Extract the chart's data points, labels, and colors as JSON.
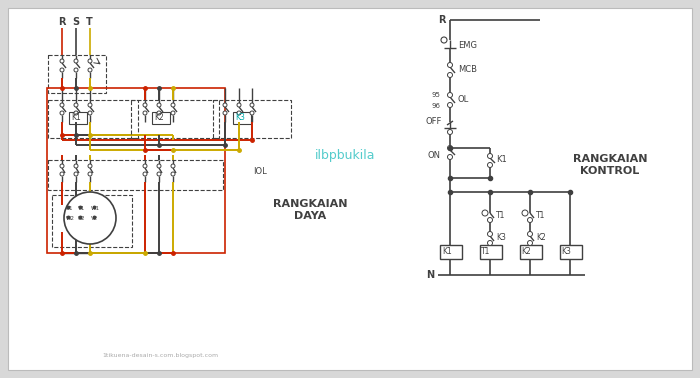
{
  "bg_color": "#d8d8d8",
  "panel_color": "#ffffff",
  "line_color": "#404040",
  "red_wire": "#cc2200",
  "yellow_wire": "#ccaa00",
  "text_color": "#404040",
  "title_left": "RANGKAIAN\nDAYA",
  "title_right": "RANGKAIAN\nKONTROL",
  "watermark": "1tikuena-desain-s.com.blogspot.com",
  "watermark2": "ilbpbukila"
}
